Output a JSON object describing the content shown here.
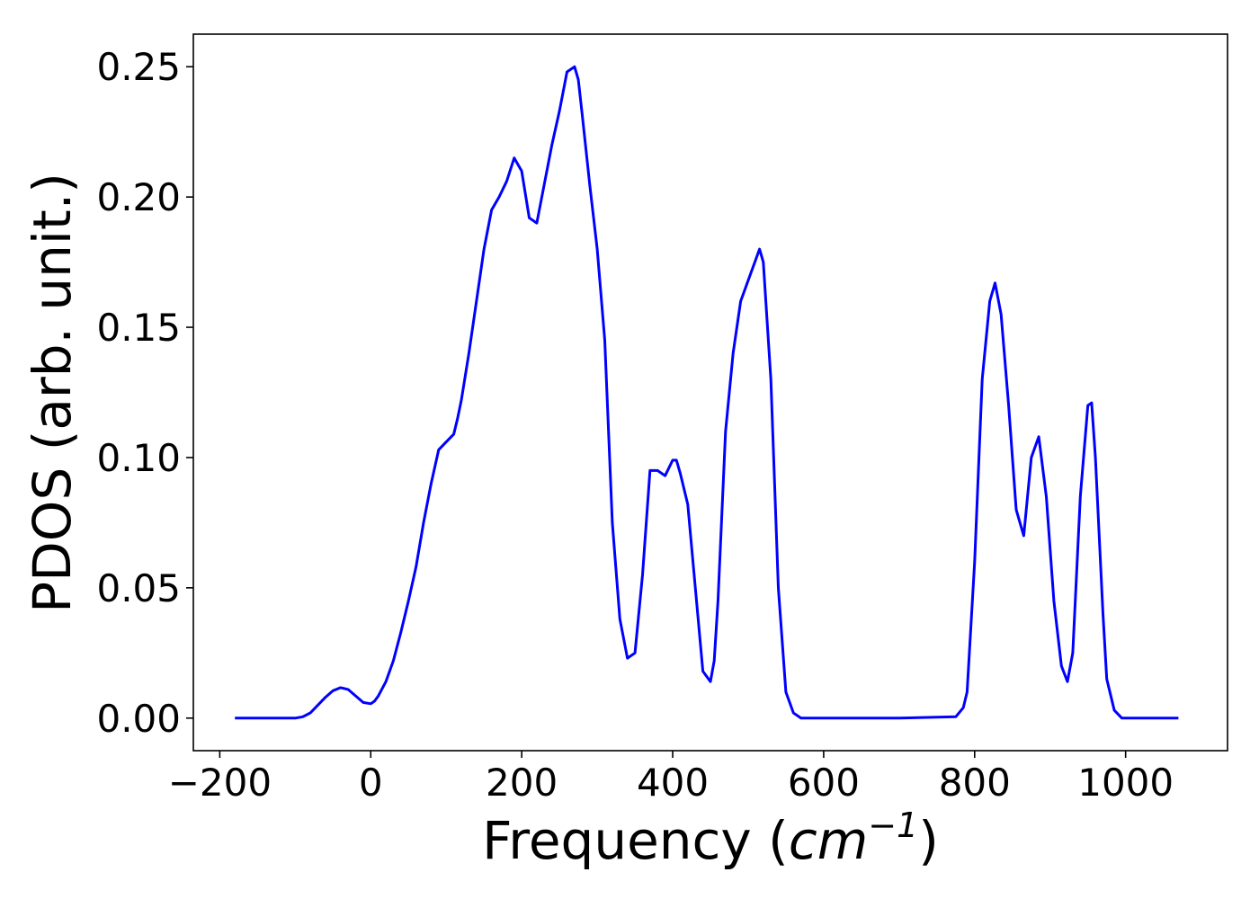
{
  "chart_data": {
    "type": "line",
    "title": "",
    "xlabel": "Frequency (",
    "xlabel_math": "cm",
    "xlabel_exp": "−1",
    "xlabel_close": ")",
    "ylabel": "PDOS (arb. unit.)",
    "xlim": [
      -235,
      1135
    ],
    "ylim": [
      -0.0125,
      0.2625
    ],
    "xticks": [
      -200,
      0,
      200,
      400,
      600,
      800,
      1000
    ],
    "xtick_labels": [
      "−200",
      "0",
      "200",
      "400",
      "600",
      "800",
      "1000"
    ],
    "yticks": [
      0.0,
      0.05,
      0.1,
      0.15,
      0.2,
      0.25
    ],
    "ytick_labels": [
      "0.00",
      "0.05",
      "0.10",
      "0.15",
      "0.20",
      "0.25"
    ],
    "grid": false,
    "legend": "none",
    "series": [
      {
        "color": "#0000ff",
        "x": [
          -180,
          -100,
          -90,
          -80,
          -70,
          -60,
          -50,
          -40,
          -30,
          -20,
          -10,
          0,
          5,
          10,
          20,
          30,
          40,
          50,
          60,
          70,
          80,
          90,
          100,
          110,
          115,
          120,
          130,
          140,
          150,
          160,
          170,
          180,
          190,
          200,
          210,
          220,
          230,
          240,
          250,
          260,
          270,
          275,
          280,
          290,
          300,
          310,
          320,
          330,
          340,
          350,
          360,
          370,
          380,
          390,
          400,
          405,
          410,
          420,
          430,
          440,
          450,
          455,
          460,
          470,
          480,
          490,
          500,
          510,
          515,
          520,
          530,
          540,
          550,
          560,
          570,
          580,
          600,
          700,
          775,
          785,
          790,
          800,
          810,
          820,
          827,
          835,
          845,
          855,
          865,
          875,
          885,
          895,
          905,
          915,
          923,
          930,
          940,
          950,
          955,
          960,
          970,
          975,
          985,
          995,
          1005,
          1070
        ],
        "y": [
          0.0,
          0.0,
          0.0005,
          0.002,
          0.005,
          0.008,
          0.0105,
          0.0117,
          0.011,
          0.0085,
          0.006,
          0.0055,
          0.0065,
          0.0085,
          0.014,
          0.022,
          0.033,
          0.045,
          0.058,
          0.075,
          0.09,
          0.103,
          0.106,
          0.109,
          0.115,
          0.122,
          0.14,
          0.16,
          0.18,
          0.195,
          0.2,
          0.206,
          0.215,
          0.21,
          0.192,
          0.19,
          0.205,
          0.22,
          0.233,
          0.248,
          0.25,
          0.245,
          0.232,
          0.205,
          0.18,
          0.145,
          0.075,
          0.038,
          0.023,
          0.025,
          0.055,
          0.095,
          0.095,
          0.093,
          0.099,
          0.099,
          0.094,
          0.082,
          0.05,
          0.018,
          0.014,
          0.022,
          0.045,
          0.11,
          0.14,
          0.16,
          0.168,
          0.176,
          0.18,
          0.175,
          0.13,
          0.05,
          0.01,
          0.002,
          0.0,
          0.0,
          0.0,
          0.0,
          0.0005,
          0.004,
          0.01,
          0.06,
          0.13,
          0.16,
          0.167,
          0.155,
          0.12,
          0.08,
          0.07,
          0.1,
          0.108,
          0.085,
          0.045,
          0.02,
          0.014,
          0.025,
          0.085,
          0.12,
          0.121,
          0.1,
          0.04,
          0.015,
          0.003,
          0.0,
          0.0,
          0.0
        ]
      }
    ]
  }
}
